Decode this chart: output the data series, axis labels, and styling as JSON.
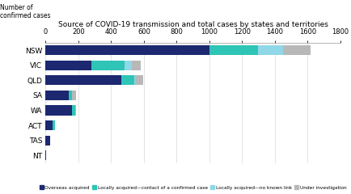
{
  "title": "Source of COVID-19 transmission and total cases by states and territories",
  "ylabel_text": "Number of\nconfirmed cases",
  "states": [
    "NSW",
    "VIC",
    "QLD",
    "SA",
    "WA",
    "ACT",
    "TAS",
    "NT"
  ],
  "overseas": [
    1000,
    280,
    460,
    140,
    160,
    40,
    30,
    5
  ],
  "locally_contact": [
    295,
    200,
    80,
    20,
    20,
    15,
    0,
    0
  ],
  "locally_no_link": [
    155,
    45,
    5,
    0,
    0,
    0,
    0,
    0
  ],
  "under_investigation": [
    165,
    55,
    50,
    25,
    5,
    0,
    0,
    0
  ],
  "colors": {
    "overseas": "#1c2870",
    "locally_contact": "#2ec4b6",
    "locally_no_link": "#90d7e8",
    "under_investigation": "#b8b8b8"
  },
  "legend_labels": [
    "Overseas acquired",
    "Locally acquired—contact of a confirmed case",
    "Locally acquired—no known link",
    "Under investigation"
  ],
  "xlim": [
    0,
    1800
  ],
  "xticks": [
    0,
    200,
    400,
    600,
    800,
    1000,
    1200,
    1400,
    1600,
    1800
  ]
}
